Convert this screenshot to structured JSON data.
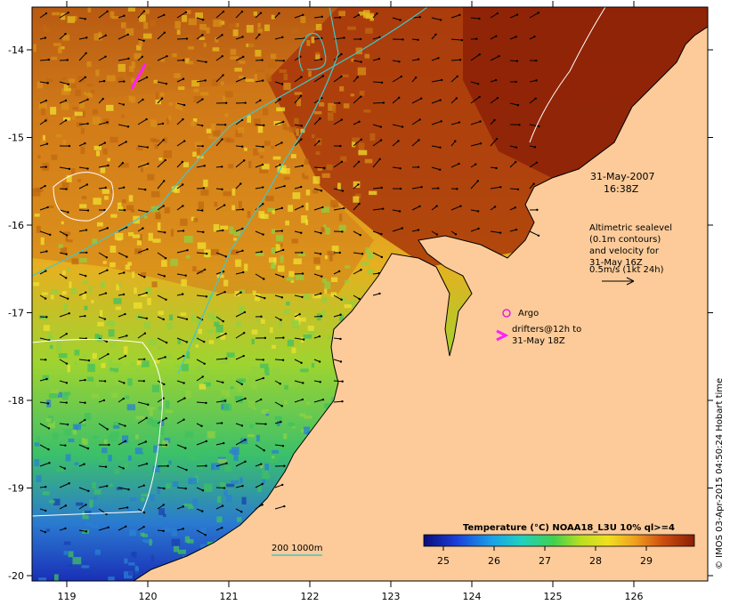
{
  "map": {
    "x_ticks": [
      "119",
      "120",
      "121",
      "122",
      "123",
      "124",
      "125",
      "126"
    ],
    "y_ticks": [
      "-14",
      "-15",
      "-16",
      "-17",
      "-18",
      "-19",
      "-20"
    ],
    "date": "31-May-2007",
    "time": "16:38Z",
    "sealevel_note": [
      "Altimetric sealevel",
      "(0.1m contours)",
      "and velocity for",
      "31-May 16Z"
    ],
    "velocity_scale_label": "0.5m/s (1kt 24h)",
    "argo_label": "Argo",
    "drifters_label": [
      "drifters@12h to",
      "31-May 18Z"
    ],
    "bathy_label": "200  1000m",
    "colorbar_title": "Temperature (°C) NOAA18_L3U 10% ql>=4",
    "colorbar_ticks": [
      "25",
      "26",
      "27",
      "28",
      "29"
    ],
    "credit": "© IMOS 03-Apr-2015 04:50:24 Hobart time",
    "colors": {
      "land": "#fccb99",
      "cold": "#1a2fb8",
      "cyan": "#20c8d0",
      "green": "#5ad14a",
      "yellow": "#e8e020",
      "orange": "#e89a20",
      "warm": "#c05810",
      "hot": "#8a1e06",
      "argo": "#e020e0",
      "bathy": "#40c8c8"
    }
  }
}
